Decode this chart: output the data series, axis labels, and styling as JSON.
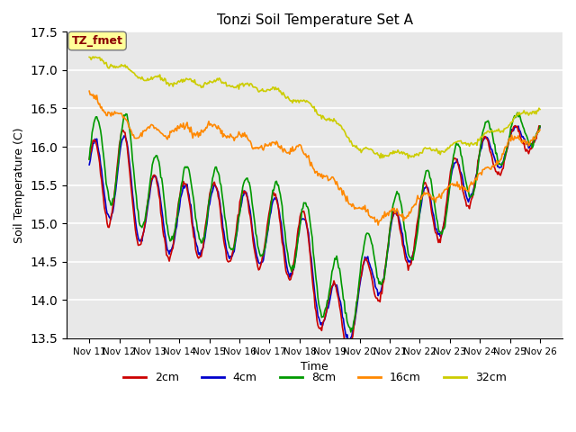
{
  "title": "Tonzi Soil Temperature Set A",
  "xlabel": "Time",
  "ylabel": "Soil Temperature (C)",
  "ylim": [
    13.5,
    17.5
  ],
  "yticks": [
    13.5,
    14.0,
    14.5,
    15.0,
    15.5,
    16.0,
    16.5,
    17.0,
    17.5
  ],
  "xtick_labels": [
    "Nov 11",
    "Nov 12",
    "Nov 13",
    "Nov 14",
    "Nov 15",
    "Nov 16",
    "Nov 17",
    "Nov 18",
    "Nov 19",
    "Nov 20",
    "Nov 21",
    "Nov 22",
    "Nov 23",
    "Nov 24",
    "Nov 25",
    "Nov 26"
  ],
  "annotation_text": "TZ_fmet",
  "annotation_color": "#8B0000",
  "annotation_bg": "#FFFF99",
  "legend_items": [
    "2cm",
    "4cm",
    "8cm",
    "16cm",
    "32cm"
  ],
  "line_colors": [
    "#CC0000",
    "#0000CC",
    "#009900",
    "#FF8800",
    "#CCCC00"
  ],
  "line_width": 1.2,
  "plot_bg": "#E8E8E8",
  "fig_bg": "#FFFFFF"
}
